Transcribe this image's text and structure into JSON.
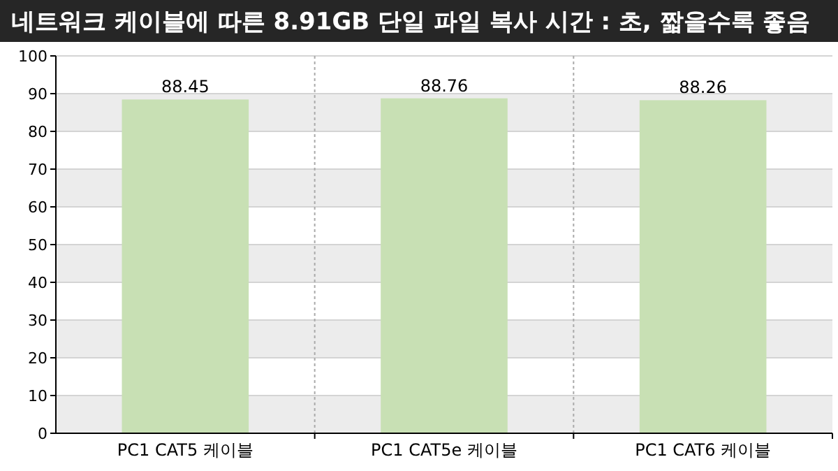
{
  "chart_data": {
    "type": "bar",
    "title": "네트워크 케이블에 따른 8.91GB 단일 파일 복사 시간 : 초, 짧을수록 좋음",
    "categories": [
      "PC1 CAT5 케이블",
      "PC1 CAT5e 케이블",
      "PC1 CAT6 케이블"
    ],
    "values": [
      88.45,
      88.76,
      88.26
    ],
    "color": "#c8e0b4",
    "ylim": [
      0,
      100
    ],
    "yticks": [
      0,
      10,
      20,
      30,
      40,
      50,
      60,
      70,
      80,
      90,
      100
    ],
    "grid": "y",
    "data_labels": true
  }
}
